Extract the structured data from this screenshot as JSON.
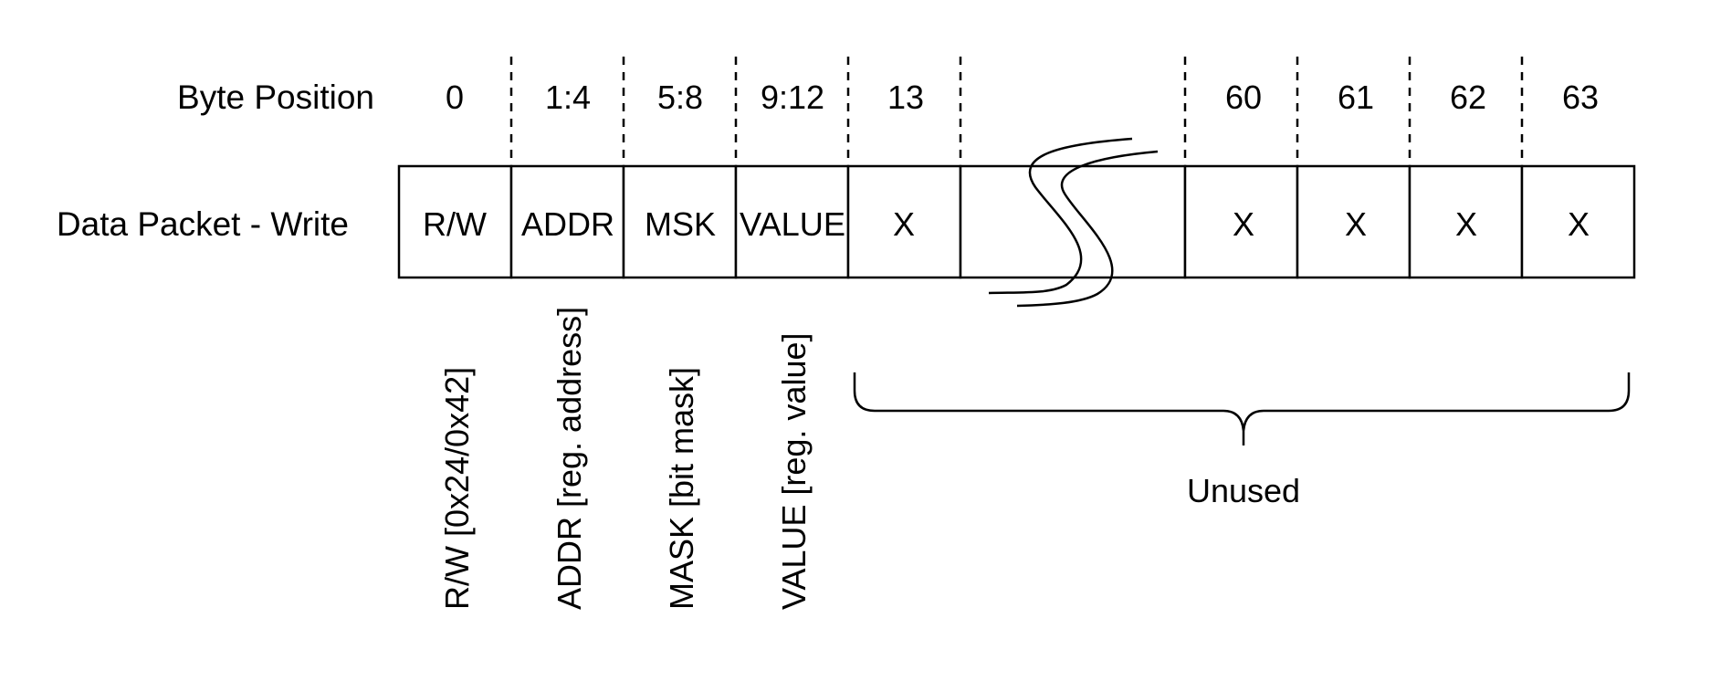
{
  "row_labels": {
    "byte_position": "Byte Position",
    "data_packet": "Data Packet - Write"
  },
  "byte_positions": {
    "p0": "0",
    "p1": "1:4",
    "p2": "5:8",
    "p3": "9:12",
    "p4": "13",
    "p60": "60",
    "p61": "61",
    "p62": "62",
    "p63": "63"
  },
  "cells": {
    "c0": "R/W",
    "c1": "ADDR",
    "c2": "MSK",
    "c3": "VALUE",
    "c4": "X",
    "c60": "X",
    "c61": "X",
    "c62": "X",
    "c63": "X"
  },
  "field_descriptions": {
    "rw": "R/W [0x24/0x42]",
    "addr": "ADDR [reg. address]",
    "mask": "MASK [bit mask]",
    "value": "VALUE [reg. value]"
  },
  "unused_label": "Unused",
  "colors": {
    "line": "#000000",
    "background": "#ffffff"
  }
}
